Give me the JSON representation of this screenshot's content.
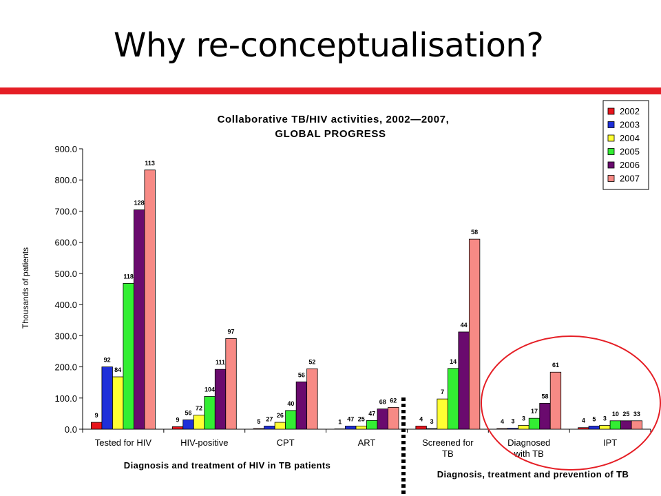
{
  "slide": {
    "title": "Why re-conceptualisation?",
    "accent_color": "#e51e25"
  },
  "chart_data": {
    "type": "bar",
    "title_line1": "Collaborative TB/HIV activities, 2002—2007,",
    "title_line2": "GLOBAL PROGRESS",
    "ylabel": "Thousands of patients",
    "ylim": [
      0,
      900
    ],
    "yticks": [
      "0.0",
      "100.0",
      "200.0",
      "300.0",
      "400.0",
      "500.0",
      "600.0",
      "700.0",
      "800.0",
      "900.0"
    ],
    "categories": [
      [
        "Tested for HIV"
      ],
      [
        "HIV-positive"
      ],
      [
        "CPT"
      ],
      [
        "ART"
      ],
      [
        "Screened for",
        "TB"
      ],
      [
        "Diagnosed",
        "with TB"
      ],
      [
        "IPT"
      ]
    ],
    "group_labels": [
      "Diagnosis and treatment of HIV in TB patients",
      "Diagnosis, treatment and prevention of TB"
    ],
    "series": [
      {
        "name": "2002",
        "color": "#e8141c",
        "values": [
          22,
          8,
          2,
          1,
          10,
          2,
          5
        ],
        "labels": [
          "9",
          "9",
          "5",
          "1",
          "4",
          "4",
          "4"
        ]
      },
      {
        "name": "2003",
        "color": "#1f2fd9",
        "values": [
          200,
          30,
          10,
          10,
          2,
          3,
          10
        ],
        "labels": [
          "92",
          "56",
          "27",
          "47",
          "3",
          "3",
          "5"
        ]
      },
      {
        "name": "2004",
        "color": "#ffff33",
        "values": [
          168,
          45,
          22,
          10,
          97,
          12,
          12
        ],
        "labels": [
          "84",
          "72",
          "26",
          "25",
          "7",
          "3",
          "3"
        ]
      },
      {
        "name": "2005",
        "color": "#33ee33",
        "values": [
          468,
          105,
          60,
          28,
          195,
          35,
          27
        ],
        "labels": [
          "118",
          "104",
          "40",
          "47",
          "14",
          "17",
          "10"
        ]
      },
      {
        "name": "2006",
        "color": "#6a0a6e",
        "values": [
          704,
          192,
          152,
          65,
          312,
          83,
          27
        ],
        "labels": [
          "128",
          "111",
          "56",
          "68",
          "44",
          "58",
          "25"
        ]
      },
      {
        "name": "2007",
        "color": "#f78a85",
        "values": [
          832,
          291,
          194,
          70,
          610,
          183,
          27
        ],
        "labels": [
          "113",
          "97",
          "52",
          "62",
          "58",
          "61",
          "33"
        ]
      }
    ],
    "legend_position": "top-right",
    "grid": false,
    "highlight_circle_color": "#e51e25"
  }
}
